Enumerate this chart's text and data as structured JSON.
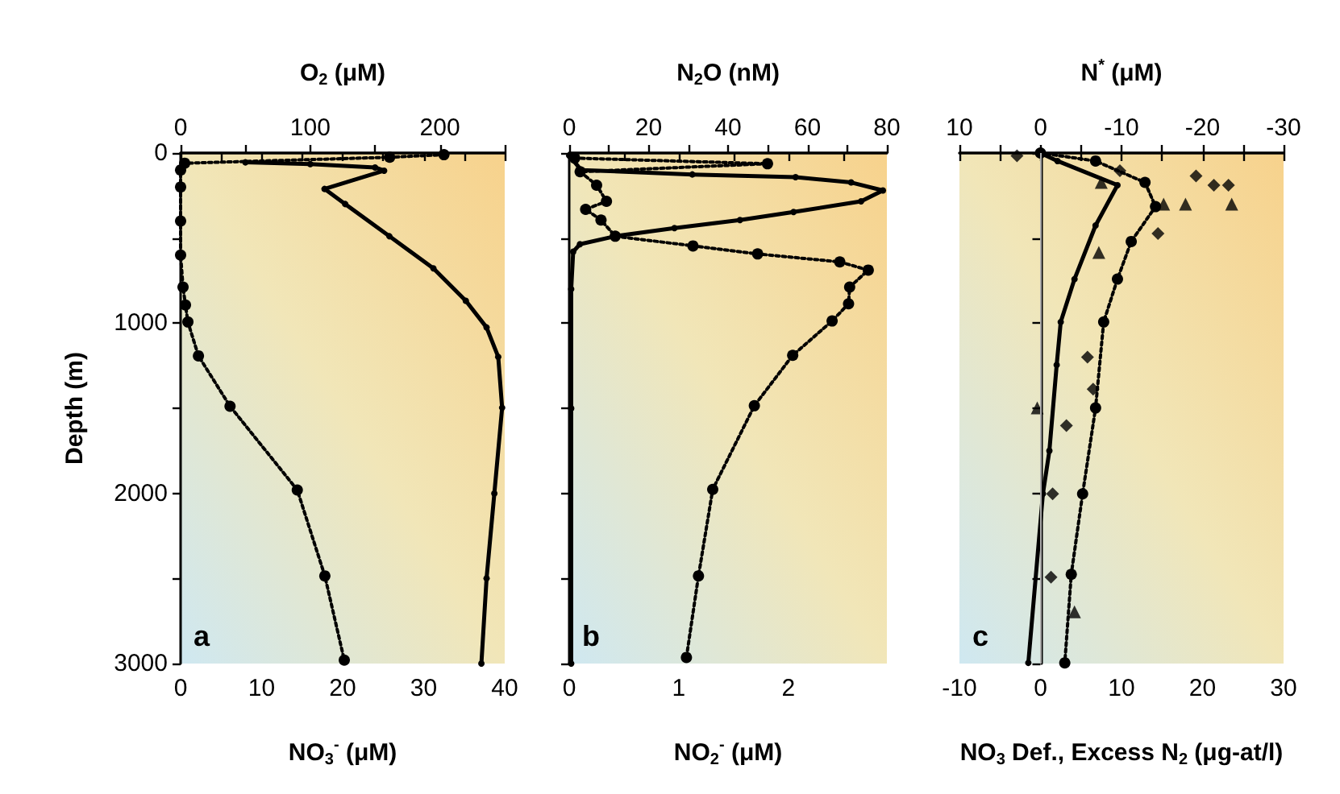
{
  "chart_data": [
    {
      "type": "line",
      "xlabel": "NO$_{3}$$^{-}$ (μM)",
      "x2label": "O$_{2}$ (μM)",
      "ylabel": "Depth (m)",
      "annotations": [
        "a"
      ],
      "xlim": [
        0,
        40
      ],
      "xticks": [
        0,
        {
          "value": 5,
          "label": null
        },
        10,
        {
          "value": 15,
          "label": null
        },
        20,
        {
          "value": 25,
          "label": null
        },
        30,
        {
          "value": 35,
          "label": null
        },
        40
      ],
      "x2lim": [
        0,
        250
      ],
      "x2ticks": [
        0,
        {
          "value": 50,
          "label": null
        },
        100,
        {
          "value": 150,
          "label": null
        },
        200,
        {
          "value": 250,
          "label": null
        }
      ],
      "ylim": [
        3000,
        0
      ],
      "yticks": [
        0,
        {
          "value": 500,
          "label": null
        },
        1000,
        {
          "value": 1500,
          "label": null
        },
        2000,
        {
          "value": 2500,
          "label": null
        },
        3000
      ],
      "series": [
        {
          "axis": "x2",
          "color": "#000000",
          "marker": "circle",
          "line_style": "solid",
          "x": [
            50,
            100,
            150,
            157,
            111,
            127,
            161,
            195,
            220,
            236,
            245,
            248,
            242,
            236,
            232
          ],
          "values": [
            55,
            65,
            85,
            104,
            211,
            300,
            489,
            678,
            868,
            1025,
            1198,
            1497,
            2000,
            2500,
            3000
          ]
        },
        {
          "color": "#000000",
          "marker": "circle",
          "line_style": "dotted",
          "x": [
            32.5,
            25.8,
            0.5,
            0,
            0,
            0,
            0,
            0.3,
            0.6,
            0.9,
            2.2,
            6.1,
            14.4,
            17.8,
            20.2
          ],
          "values": [
            10,
            25,
            60,
            100,
            200,
            400,
            600,
            788,
            893,
            993,
            1192,
            1488,
            1980,
            2485,
            2980
          ]
        }
      ]
    },
    {
      "type": "line",
      "xlabel": "NO$_{2}$$^{-}$ (μM)",
      "x2label": "N$_{2}$O (nM)",
      "annotations": [
        "b"
      ],
      "tick_labels": "x",
      "xlim": [
        0,
        2.9
      ],
      "xticks": [
        0,
        {
          "value": 0.5,
          "label": null
        },
        1,
        {
          "value": 1.5,
          "label": null
        },
        2,
        {
          "value": 2.5,
          "label": null
        }
      ],
      "x2lim": [
        0,
        80
      ],
      "x2ticks": [
        0,
        {
          "value": 10,
          "label": null
        },
        20,
        {
          "value": 30,
          "label": null
        },
        40,
        {
          "value": 50,
          "label": null
        },
        60,
        {
          "value": 70,
          "label": null
        },
        80
      ],
      "ylim": [
        3000,
        0
      ],
      "yticks": [
        0,
        {
          "value": 500,
          "label": null
        },
        1000,
        {
          "value": 1500,
          "label": null
        },
        2000,
        {
          "value": 2500,
          "label": null
        },
        3000
      ],
      "series": [
        {
          "axis": "x2",
          "color": "#000000",
          "marker": "circle",
          "line_style": "solid",
          "x": [
            0,
            3,
            31,
            57,
            71,
            79,
            73.5,
            56.5,
            43,
            26.5,
            11.6,
            2.7,
            1,
            0.5,
            0.5,
            0.5
          ],
          "values": [
            15,
            100,
            126,
            142,
            173,
            220,
            284,
            347,
            394,
            441,
            489,
            536,
            580,
            800,
            1500,
            3000
          ]
        },
        {
          "color": "#000000",
          "marker": "circle",
          "line_style": "dotted",
          "x": [
            0.05,
            1.81,
            0.1,
            0.25,
            0.34,
            0.15,
            0.29,
            0.42,
            1.13,
            1.72,
            2.47,
            2.73,
            2.56,
            2.55,
            2.4,
            2.04,
            1.69,
            1.31,
            1.18,
            1.07
          ],
          "values": [
            30,
            63,
            110,
            189,
            284,
            331,
            394,
            489,
            546,
            593,
            640,
            688,
            788,
            886,
            987,
            1189,
            1485,
            1977,
            2485,
            2964
          ]
        }
      ]
    },
    {
      "type": "line",
      "xlabel": "NO$_{3}$ Def., Excess N$_{2}$ (μg-at/l)",
      "x2label": "N$^{*}$ (μM)",
      "annotations": [
        "c"
      ],
      "tick_labels": "x",
      "xlim": [
        -10,
        30
      ],
      "xticks": [
        -10,
        {
          "value": -5,
          "label": null
        },
        0,
        {
          "value": 5,
          "label": null
        },
        10,
        {
          "value": 15,
          "label": null
        },
        20,
        {
          "value": 25,
          "label": null
        },
        30
      ],
      "x2lim": [
        10,
        -30
      ],
      "x2ticks": [
        10,
        {
          "value": 5,
          "label": null
        },
        0,
        {
          "value": -5,
          "label": null
        },
        -10,
        {
          "value": -15,
          "label": null
        },
        -20,
        {
          "value": -25,
          "label": null
        },
        -30
      ],
      "ylim": [
        3000,
        0
      ],
      "yticks": [
        0,
        {
          "value": 500,
          "label": null
        },
        1000,
        {
          "value": 1500,
          "label": null
        },
        2000,
        {
          "value": 2500,
          "label": null
        },
        3000
      ],
      "ref_lines": [
        {
          "axis": "x",
          "value": 0,
          "color": "#aaaaaa"
        }
      ],
      "series": [
        {
          "axis": "x2",
          "color": "#000000",
          "marker": "circle",
          "line_style": "solid",
          "x": [
            0,
            -2.1,
            -9.5,
            -6.8,
            -4.2,
            -2.5,
            -2,
            -1.1,
            -0.3,
            1.5
          ],
          "values": [
            0,
            47,
            189,
            426,
            741,
            993,
            1246,
            1750,
            2003,
            2996
          ]
        },
        {
          "color": "#000000",
          "marker": "circle",
          "line_style": "dotted",
          "x": [
            0,
            6.8,
            12.9,
            14.2,
            11.2,
            9.5,
            7.8,
            6.8,
            5.2,
            3.8,
            3
          ],
          "values": [
            0,
            47,
            173,
            315,
            520,
            741,
            993,
            1498,
            2003,
            2476,
            2996
          ]
        },
        {
          "type": "scatter",
          "color": "#000000",
          "marker": "diamond",
          "x": [
            -2.9,
            9.8,
            19.2,
            21.4,
            23.2,
            14.5,
            5.8,
            6.5,
            3.2,
            1.5,
            1.3
          ],
          "values": [
            16,
            104,
            135,
            189,
            189,
            473,
            1199,
            1388,
            1602,
            2003,
            2492
          ]
        },
        {
          "type": "scatter",
          "color": "#000000",
          "marker": "triangle",
          "x": [
            7.5,
            15.2,
            17.9,
            23.6,
            7.2,
            -0.4,
            4.2
          ],
          "values": [
            173,
            300,
            300,
            300,
            584,
            1498,
            2696
          ]
        }
      ]
    }
  ]
}
